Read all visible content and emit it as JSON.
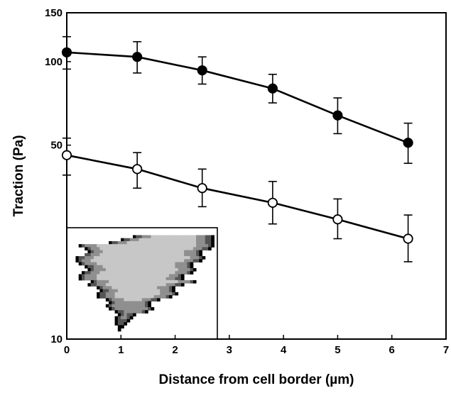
{
  "chart_data": {
    "type": "line",
    "x_scale": "linear",
    "y_scale": "log",
    "xlim": [
      0,
      7
    ],
    "ylim": [
      10,
      150
    ],
    "x_ticks": [
      0,
      1,
      2,
      3,
      4,
      5,
      6,
      7
    ],
    "y_ticks": [
      10,
      50,
      100,
      150
    ],
    "x_tick_labels": [
      "0",
      "1",
      "2",
      "3",
      "4",
      "5",
      "6",
      "7"
    ],
    "y_tick_labels": [
      "10",
      "50",
      "100",
      "150"
    ],
    "xlabel": "Distance from cell border (µm)",
    "ylabel": "Traction (Pa)",
    "grid": false,
    "legend": "none",
    "series": [
      {
        "marker": "filled-circle",
        "color": "#000000",
        "x": [
          0,
          1.3,
          2.5,
          3.8,
          5.0,
          6.3
        ],
        "y": [
          108,
          104,
          93,
          80,
          64,
          51
        ],
        "err_low": [
          94,
          91,
          83,
          71,
          55,
          43
        ],
        "err_high": [
          123,
          118,
          104,
          90,
          74,
          60
        ]
      },
      {
        "marker": "open-circle",
        "color": "#000000",
        "x": [
          0,
          1.3,
          2.5,
          3.8,
          5.0,
          6.3
        ],
        "y": [
          46,
          41,
          35,
          31,
          27,
          23
        ],
        "err_low": [
          39,
          35,
          30,
          26,
          23,
          19
        ],
        "err_high": [
          53,
          47,
          41,
          37,
          32,
          28
        ]
      }
    ],
    "inset": {
      "content": "cell traction map image",
      "colors": [
        "#000000",
        "#555555",
        "#8f8f8f",
        "#c7c7c7",
        "#e4e4e4"
      ]
    }
  }
}
